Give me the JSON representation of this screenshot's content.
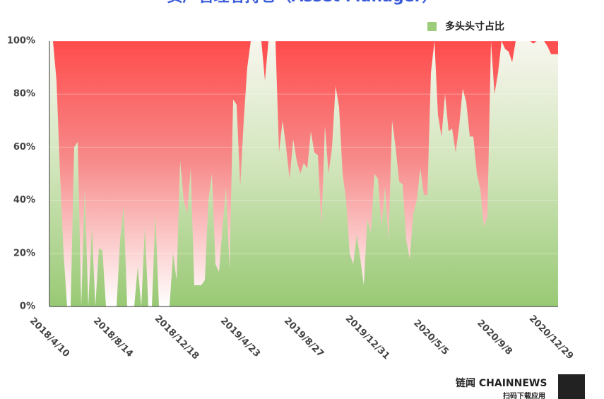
{
  "chart_data": {
    "type": "area",
    "title": "资产管理者持仓（Asset Manager）",
    "categories": [
      "2018/4/10",
      null,
      null,
      null,
      null,
      null,
      null,
      null,
      null,
      null,
      null,
      null,
      null,
      null,
      null,
      null,
      null,
      null,
      "2018/8/14",
      null,
      null,
      null,
      null,
      null,
      null,
      null,
      null,
      null,
      null,
      null,
      null,
      null,
      null,
      null,
      null,
      null,
      "2018/12/18",
      null,
      null,
      null,
      null,
      null,
      null,
      null,
      null,
      null,
      null,
      null,
      null,
      null,
      null,
      null,
      null,
      null,
      "2019/4/23",
      null,
      null,
      null,
      null,
      null,
      null,
      null,
      null,
      null,
      null,
      null,
      null,
      null,
      null,
      null,
      null,
      null,
      "2019/8/27",
      null,
      null,
      null,
      null,
      null,
      null,
      null,
      null,
      null,
      null,
      null,
      null,
      null,
      null,
      null,
      null,
      null,
      "2019/12/31",
      null,
      null,
      null,
      null,
      null,
      null,
      null,
      null,
      null,
      null,
      null,
      null,
      null,
      null,
      null,
      null,
      null,
      "2020/5/5",
      null,
      null,
      null,
      null,
      null,
      null,
      null,
      null,
      null,
      null,
      null,
      null,
      null,
      null,
      null,
      null,
      null,
      "2020/9/8",
      null,
      null,
      null,
      null,
      null,
      null,
      null,
      null,
      null,
      null,
      null,
      null,
      null,
      null,
      null,
      "2020/12/29",
      null,
      null
    ],
    "series": [
      {
        "name": "多头头寸占比",
        "color": "#9ccb7a",
        "values": [
          100,
          100,
          85,
          50,
          20,
          0,
          0,
          60,
          62,
          0,
          45,
          0,
          30,
          0,
          22,
          21,
          0,
          0,
          0,
          0,
          25,
          38,
          0,
          0,
          0,
          15,
          0,
          30,
          0,
          0,
          35,
          0,
          0,
          0,
          0,
          20,
          10,
          55,
          40,
          35,
          52,
          8,
          8,
          8,
          10,
          40,
          50,
          16,
          13,
          30,
          45,
          14,
          78,
          76,
          45,
          70,
          90,
          100,
          100,
          100,
          100,
          85,
          100,
          100,
          100,
          58,
          70,
          60,
          48,
          63,
          55,
          50,
          54,
          52,
          66,
          58,
          57,
          30,
          68,
          50,
          60,
          83,
          75,
          50,
          40,
          20,
          16,
          27,
          18,
          8,
          33,
          28,
          50,
          48,
          30,
          45,
          25,
          70,
          60,
          47,
          46,
          25,
          18,
          35,
          40,
          52,
          42,
          42,
          88,
          100,
          72,
          64,
          80,
          66,
          67,
          58,
          68,
          82,
          77,
          64,
          64,
          50,
          44,
          30,
          34,
          100,
          80,
          88,
          100,
          97,
          96,
          92,
          100,
          100,
          100,
          100,
          100,
          99,
          100,
          100,
          100,
          98,
          95,
          95,
          95
        ]
      }
    ],
    "ylim": [
      0,
      100
    ],
    "yticks": [
      {
        "value": 0,
        "label": "0%"
      },
      {
        "value": 20,
        "label": "20%"
      },
      {
        "value": 40,
        "label": "40%"
      },
      {
        "value": 60,
        "label": "60%"
      },
      {
        "value": 80,
        "label": "80%"
      },
      {
        "value": 100,
        "label": "100%"
      }
    ],
    "grid": true,
    "legend": "top-right",
    "watermark": {
      "brand": "链闻 CHAINNEWS",
      "caption": "扫码下载应用"
    }
  }
}
